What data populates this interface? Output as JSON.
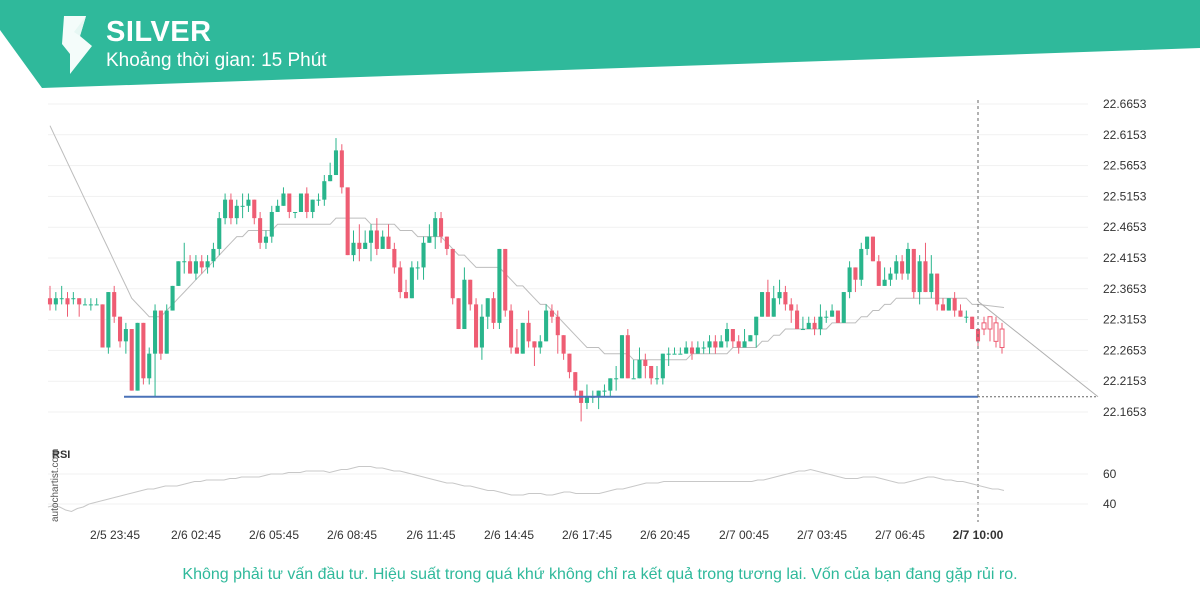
{
  "header": {
    "symbol": "SILVER",
    "interval_label": "Khoảng thời gian: 15 Phút"
  },
  "colors": {
    "brand": "#2fb99b",
    "bull": "#29b58c",
    "bear": "#ee5d73",
    "support": "#4a72b8",
    "ma": "#bdbdbd"
  },
  "watermark": "autochartist.com",
  "disclaimer": "Không phải tư vấn đầu tư. Hiệu suất trong quá khứ không chỉ ra kết quả trong tương lai. Vốn của bạn đang gặp rủi ro.",
  "chart_data": {
    "type": "candlestick",
    "y_ticks": [
      "22.6653",
      "22.6153",
      "22.5653",
      "22.5153",
      "22.4653",
      "22.4153",
      "22.3653",
      "22.3153",
      "22.2653",
      "22.2153",
      "22.1653"
    ],
    "ylim": [
      22.14,
      22.68
    ],
    "x_ticks": [
      "2/5 23:45",
      "2/6 02:45",
      "2/6 05:45",
      "2/6 08:45",
      "2/6 11:45",
      "2/6 14:45",
      "2/6 17:45",
      "2/6 20:45",
      "2/7 00:45",
      "2/7 03:45",
      "2/7 06:45",
      "2/7 10:00"
    ],
    "x_tick_bold": "2/7 10:00",
    "support_level": 22.19,
    "forecast_end_value": 22.19,
    "candles": [
      [
        22.35,
        22.34,
        22.37,
        22.33
      ],
      [
        22.34,
        22.35,
        22.36,
        22.33
      ],
      [
        22.35,
        22.35,
        22.37,
        22.34
      ],
      [
        22.35,
        22.34,
        22.36,
        22.32
      ],
      [
        22.35,
        22.35,
        22.36,
        22.34
      ],
      [
        22.35,
        22.34,
        22.35,
        22.32
      ],
      [
        22.34,
        22.34,
        22.35,
        22.34
      ],
      [
        22.34,
        22.34,
        22.35,
        22.33
      ],
      [
        22.34,
        22.34,
        22.35,
        22.34
      ],
      [
        22.34,
        22.27,
        22.34,
        22.27
      ],
      [
        22.27,
        22.36,
        22.36,
        22.26
      ],
      [
        22.36,
        22.32,
        22.37,
        22.31
      ],
      [
        22.32,
        22.28,
        22.32,
        22.27
      ],
      [
        22.28,
        22.3,
        22.31,
        22.26
      ],
      [
        22.3,
        22.2,
        22.3,
        22.2
      ],
      [
        22.2,
        22.31,
        22.31,
        22.2
      ],
      [
        22.31,
        22.22,
        22.31,
        22.21
      ],
      [
        22.22,
        22.26,
        22.27,
        22.21
      ],
      [
        22.26,
        22.33,
        22.34,
        22.19
      ],
      [
        22.33,
        22.26,
        22.33,
        22.25
      ],
      [
        22.26,
        22.33,
        22.34,
        22.26
      ],
      [
        22.33,
        22.37,
        22.37,
        22.33
      ],
      [
        22.37,
        22.41,
        22.41,
        22.37
      ],
      [
        22.41,
        22.41,
        22.44,
        22.39
      ],
      [
        22.41,
        22.39,
        22.42,
        22.39
      ],
      [
        22.39,
        22.41,
        22.42,
        22.38
      ],
      [
        22.41,
        22.4,
        22.42,
        22.39
      ],
      [
        22.4,
        22.41,
        22.42,
        22.39
      ],
      [
        22.41,
        22.43,
        22.44,
        22.4
      ],
      [
        22.43,
        22.48,
        22.49,
        22.42
      ],
      [
        22.48,
        22.51,
        22.52,
        22.47
      ],
      [
        22.51,
        22.48,
        22.52,
        22.47
      ],
      [
        22.48,
        22.5,
        22.51,
        22.47
      ],
      [
        22.5,
        22.5,
        22.52,
        22.48
      ],
      [
        22.5,
        22.51,
        22.52,
        22.49
      ],
      [
        22.51,
        22.48,
        22.51,
        22.47
      ],
      [
        22.48,
        22.44,
        22.49,
        22.43
      ],
      [
        22.44,
        22.45,
        22.46,
        22.43
      ],
      [
        22.45,
        22.49,
        22.5,
        22.44
      ],
      [
        22.49,
        22.5,
        22.51,
        22.49
      ],
      [
        22.5,
        22.52,
        22.53,
        22.5
      ],
      [
        22.52,
        22.49,
        22.52,
        22.48
      ],
      [
        22.49,
        22.49,
        22.49,
        22.48
      ],
      [
        22.49,
        22.52,
        22.52,
        22.49
      ],
      [
        22.52,
        22.49,
        22.53,
        22.48
      ],
      [
        22.49,
        22.51,
        22.51,
        22.48
      ],
      [
        22.51,
        22.51,
        22.52,
        22.5
      ],
      [
        22.51,
        22.54,
        22.55,
        22.5
      ],
      [
        22.54,
        22.55,
        22.57,
        22.54
      ],
      [
        22.55,
        22.59,
        22.61,
        22.55
      ],
      [
        22.59,
        22.53,
        22.6,
        22.52
      ],
      [
        22.53,
        22.42,
        22.52,
        22.42
      ],
      [
        22.42,
        22.44,
        22.46,
        22.41
      ],
      [
        22.44,
        22.43,
        22.47,
        22.41
      ],
      [
        22.43,
        22.44,
        22.46,
        22.43
      ],
      [
        22.44,
        22.46,
        22.47,
        22.41
      ],
      [
        22.46,
        22.43,
        22.48,
        22.42
      ],
      [
        22.43,
        22.45,
        22.46,
        22.44
      ],
      [
        22.45,
        22.43,
        22.47,
        22.43
      ],
      [
        22.43,
        22.4,
        22.44,
        22.39
      ],
      [
        22.4,
        22.36,
        22.41,
        22.35
      ],
      [
        22.36,
        22.35,
        22.38,
        22.35
      ],
      [
        22.35,
        22.4,
        22.41,
        22.35
      ],
      [
        22.4,
        22.4,
        22.41,
        22.38
      ],
      [
        22.4,
        22.44,
        22.45,
        22.38
      ],
      [
        22.44,
        22.45,
        22.47,
        22.44
      ],
      [
        22.45,
        22.48,
        22.49,
        22.43
      ],
      [
        22.48,
        22.45,
        22.49,
        22.44
      ],
      [
        22.45,
        22.43,
        22.45,
        22.42
      ],
      [
        22.43,
        22.35,
        22.43,
        22.34
      ],
      [
        22.35,
        22.3,
        22.35,
        22.3
      ],
      [
        22.3,
        22.38,
        22.4,
        22.3
      ],
      [
        22.38,
        22.34,
        22.38,
        22.33
      ],
      [
        22.34,
        22.27,
        22.35,
        22.27
      ],
      [
        22.27,
        22.32,
        22.34,
        22.25
      ],
      [
        22.32,
        22.35,
        22.35,
        22.3
      ],
      [
        22.35,
        22.31,
        22.36,
        22.3
      ],
      [
        22.31,
        22.43,
        22.43,
        22.3
      ],
      [
        22.43,
        22.33,
        22.43,
        22.32
      ],
      [
        22.33,
        22.27,
        22.34,
        22.26
      ],
      [
        22.27,
        22.26,
        22.3,
        22.26
      ],
      [
        22.26,
        22.31,
        22.31,
        22.26
      ],
      [
        22.31,
        22.28,
        22.33,
        22.27
      ],
      [
        22.28,
        22.27,
        22.28,
        22.24
      ],
      [
        22.27,
        22.28,
        22.29,
        22.26
      ],
      [
        22.28,
        22.33,
        22.34,
        22.28
      ],
      [
        22.33,
        22.32,
        22.34,
        22.31
      ],
      [
        22.32,
        22.29,
        22.33,
        22.26
      ],
      [
        22.29,
        22.26,
        22.29,
        22.25
      ],
      [
        22.26,
        22.23,
        22.26,
        22.22
      ],
      [
        22.23,
        22.2,
        22.23,
        22.19
      ],
      [
        22.2,
        22.18,
        22.19,
        22.15
      ],
      [
        22.18,
        22.19,
        22.21,
        22.17
      ],
      [
        22.19,
        22.19,
        22.2,
        22.18
      ],
      [
        22.19,
        22.2,
        22.2,
        22.17
      ],
      [
        22.2,
        22.2,
        22.21,
        22.19
      ],
      [
        22.2,
        22.22,
        22.22,
        22.19
      ],
      [
        22.22,
        22.22,
        22.24,
        22.2
      ],
      [
        22.22,
        22.29,
        22.29,
        22.22
      ],
      [
        22.29,
        22.22,
        22.3,
        22.22
      ],
      [
        22.22,
        22.22,
        22.25,
        22.22
      ],
      [
        22.22,
        22.25,
        22.27,
        22.22
      ],
      [
        22.25,
        22.24,
        22.26,
        22.22
      ],
      [
        22.24,
        22.22,
        22.24,
        22.21
      ],
      [
        22.22,
        22.22,
        22.24,
        22.21
      ],
      [
        22.22,
        22.26,
        22.26,
        22.21
      ],
      [
        22.26,
        22.26,
        22.27,
        22.24
      ],
      [
        22.26,
        22.26,
        22.27,
        22.26
      ],
      [
        22.26,
        22.26,
        22.27,
        22.26
      ],
      [
        22.26,
        22.27,
        22.28,
        22.26
      ],
      [
        22.27,
        22.26,
        22.28,
        22.25
      ],
      [
        22.26,
        22.27,
        22.28,
        22.26
      ],
      [
        22.27,
        22.27,
        22.28,
        22.26
      ],
      [
        22.27,
        22.28,
        22.29,
        22.26
      ],
      [
        22.28,
        22.27,
        22.29,
        22.26
      ],
      [
        22.27,
        22.28,
        22.29,
        22.27
      ],
      [
        22.28,
        22.3,
        22.31,
        22.27
      ],
      [
        22.3,
        22.28,
        22.3,
        22.27
      ],
      [
        22.28,
        22.27,
        22.29,
        22.26
      ],
      [
        22.27,
        22.28,
        22.3,
        22.27
      ],
      [
        22.28,
        22.29,
        22.29,
        22.28
      ],
      [
        22.29,
        22.32,
        22.32,
        22.27
      ],
      [
        22.32,
        22.36,
        22.36,
        22.32
      ],
      [
        22.36,
        22.32,
        22.38,
        22.32
      ],
      [
        22.32,
        22.35,
        22.37,
        22.32
      ],
      [
        22.35,
        22.36,
        22.38,
        22.34
      ],
      [
        22.36,
        22.34,
        22.37,
        22.33
      ],
      [
        22.34,
        22.33,
        22.35,
        22.31
      ],
      [
        22.33,
        22.3,
        22.34,
        22.3
      ],
      [
        22.3,
        22.3,
        22.32,
        22.3
      ],
      [
        22.3,
        22.31,
        22.32,
        22.3
      ],
      [
        22.31,
        22.3,
        22.32,
        22.29
      ],
      [
        22.3,
        22.32,
        22.34,
        22.29
      ],
      [
        22.32,
        22.32,
        22.33,
        22.31
      ],
      [
        22.32,
        22.33,
        22.34,
        22.32
      ],
      [
        22.33,
        22.31,
        22.33,
        22.31
      ],
      [
        22.31,
        22.36,
        22.36,
        22.31
      ],
      [
        22.36,
        22.4,
        22.41,
        22.35
      ],
      [
        22.4,
        22.38,
        22.4,
        22.36
      ],
      [
        22.38,
        22.43,
        22.44,
        22.37
      ],
      [
        22.43,
        22.45,
        22.45,
        22.42
      ],
      [
        22.45,
        22.41,
        22.45,
        22.41
      ],
      [
        22.41,
        22.37,
        22.42,
        22.37
      ],
      [
        22.37,
        22.38,
        22.4,
        22.37
      ],
      [
        22.38,
        22.39,
        22.4,
        22.37
      ],
      [
        22.39,
        22.41,
        22.42,
        22.38
      ],
      [
        22.41,
        22.39,
        22.42,
        22.38
      ],
      [
        22.39,
        22.43,
        22.44,
        22.38
      ],
      [
        22.43,
        22.36,
        22.43,
        22.35
      ],
      [
        22.36,
        22.41,
        22.42,
        22.34
      ],
      [
        22.41,
        22.36,
        22.44,
        22.36
      ],
      [
        22.36,
        22.39,
        22.42,
        22.35
      ],
      [
        22.39,
        22.34,
        22.39,
        22.33
      ],
      [
        22.34,
        22.33,
        22.35,
        22.33
      ],
      [
        22.33,
        22.35,
        22.35,
        22.33
      ],
      [
        22.35,
        22.33,
        22.36,
        22.32
      ],
      [
        22.33,
        22.32,
        22.34,
        22.32
      ],
      [
        22.32,
        22.32,
        22.33,
        22.31
      ],
      [
        22.32,
        22.3,
        22.32,
        22.3
      ],
      [
        22.3,
        22.28,
        22.3,
        22.27
      ]
    ],
    "ma": [
      22.63,
      22.61,
      22.59,
      22.57,
      22.55,
      22.53,
      22.51,
      22.49,
      22.47,
      22.45,
      22.43,
      22.41,
      22.39,
      22.37,
      22.35,
      22.34,
      22.33,
      22.32,
      22.32,
      22.32,
      22.33,
      22.34,
      22.35,
      22.36,
      22.37,
      22.38,
      22.39,
      22.4,
      22.41,
      22.42,
      22.43,
      22.44,
      22.45,
      22.45,
      22.46,
      22.46,
      22.46,
      22.46,
      22.46,
      22.47,
      22.47,
      22.47,
      22.47,
      22.47,
      22.47,
      22.47,
      22.47,
      22.47,
      22.47,
      22.48,
      22.48,
      22.48,
      22.48,
      22.48,
      22.48,
      22.47,
      22.47,
      22.47,
      22.47,
      22.47,
      22.46,
      22.46,
      22.46,
      22.45,
      22.45,
      22.45,
      22.45,
      22.45,
      22.44,
      22.43,
      22.42,
      22.42,
      22.41,
      22.4,
      22.4,
      22.4,
      22.4,
      22.4,
      22.39,
      22.38,
      22.37,
      22.37,
      22.36,
      22.35,
      22.34,
      22.34,
      22.33,
      22.32,
      22.31,
      22.3,
      22.29,
      22.28,
      22.27,
      22.27,
      22.27,
      22.26,
      22.26,
      22.26,
      22.26,
      22.26,
      22.25,
      22.25,
      22.25,
      22.25,
      22.25,
      22.25,
      22.25,
      22.25,
      22.25,
      22.25,
      22.26,
      22.26,
      22.26,
      22.26,
      22.26,
      22.26,
      22.26,
      22.27,
      22.27,
      22.27,
      22.27,
      22.27,
      22.28,
      22.28,
      22.29,
      22.29,
      22.3,
      22.3,
      22.3,
      22.3,
      22.3,
      22.3,
      22.3,
      22.3,
      22.31,
      22.31,
      22.31,
      22.31,
      22.31,
      22.32,
      22.32,
      22.33,
      22.33,
      22.34,
      22.34,
      22.35,
      22.35,
      22.35,
      22.35,
      22.35,
      22.35,
      22.35,
      22.35,
      22.35,
      22.35,
      22.35,
      22.35,
      22.35,
      22.34,
      22.34
    ],
    "rsi": {
      "label": "RSI",
      "ticks": [
        "60",
        "40"
      ],
      "ylim": [
        30,
        80
      ],
      "values": [
        38,
        39,
        38,
        36,
        35,
        37,
        38,
        40,
        41,
        42,
        43,
        44,
        45,
        46,
        47,
        48,
        49,
        50,
        50,
        51,
        52,
        52,
        52,
        53,
        54,
        55,
        55,
        56,
        56,
        56,
        56,
        57,
        57,
        58,
        58,
        58,
        58,
        59,
        60,
        60,
        60,
        61,
        61,
        61,
        62,
        62,
        62,
        62,
        61,
        62,
        63,
        63,
        64,
        65,
        65,
        65,
        64,
        64,
        63,
        62,
        62,
        61,
        60,
        59,
        58,
        57,
        56,
        55,
        54,
        54,
        53,
        52,
        52,
        51,
        50,
        49,
        49,
        48,
        47,
        46,
        46,
        46,
        47,
        47,
        47,
        46,
        46,
        47,
        48,
        48,
        47,
        47,
        47,
        47,
        47,
        48,
        49,
        50,
        50,
        51,
        52,
        53,
        54,
        54,
        54,
        55,
        55,
        55,
        55,
        55,
        55,
        55,
        55,
        55,
        55,
        55,
        55,
        55,
        55,
        55,
        55,
        56,
        56,
        57,
        58,
        59,
        60,
        61,
        62,
        62,
        63,
        62,
        61,
        60,
        59,
        58,
        57,
        57,
        57,
        58,
        58,
        58,
        57,
        56,
        55,
        54,
        54,
        55,
        56,
        57,
        58,
        58,
        57,
        56,
        56,
        55,
        55,
        54,
        53,
        52,
        51,
        50,
        50,
        49
      ]
    }
  }
}
